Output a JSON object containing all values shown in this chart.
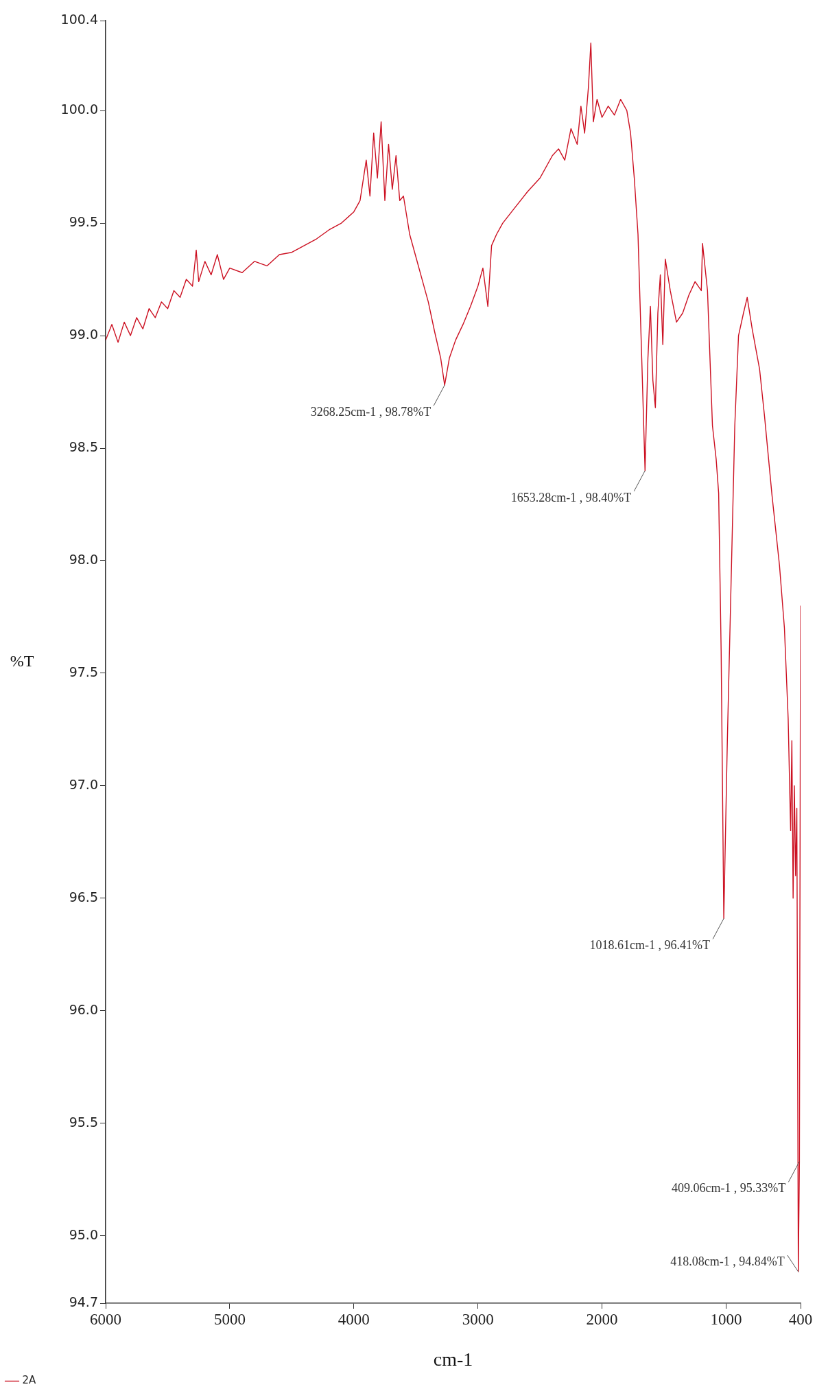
{
  "chart_data": {
    "type": "line",
    "xlabel": "cm-1",
    "ylabel": "%T",
    "xlim": [
      6000,
      400
    ],
    "xticks": [
      400,
      1000,
      2000,
      3000,
      4000,
      5000,
      6000
    ],
    "ylim": [
      94.7,
      100.4
    ],
    "yticks": [
      94.7,
      {
        "value": 95,
        "label": "95.0"
      },
      95.5,
      {
        "value": 96,
        "label": "96.0"
      },
      96.5,
      {
        "value": 97,
        "label": "97.0"
      },
      97.5,
      {
        "value": 98,
        "label": "98.0"
      },
      98.5,
      {
        "value": 99,
        "label": "99.0"
      },
      99.5,
      {
        "value": 100,
        "label": "100.0"
      },
      100.4
    ],
    "grid": false,
    "legend": "bottom left",
    "marker": "none",
    "x": [
      6000,
      5950,
      5900,
      5850,
      5800,
      5750,
      5700,
      5650,
      5600,
      5550,
      5500,
      5450,
      5400,
      5350,
      5300,
      5270,
      5250,
      5200,
      5150,
      5100,
      5050,
      5000,
      4900,
      4800,
      4700,
      4600,
      4500,
      4400,
      4300,
      4200,
      4100,
      4000,
      3950,
      3900,
      3870,
      3840,
      3810,
      3780,
      3750,
      3720,
      3690,
      3660,
      3630,
      3600,
      3550,
      3500,
      3450,
      3400,
      3350,
      3300,
      3268.25,
      3230,
      3180,
      3120,
      3060,
      3000,
      2960,
      2920,
      2890,
      2850,
      2800,
      2700,
      2600,
      2500,
      2400,
      2350,
      2300,
      2250,
      2200,
      2170,
      2140,
      2110,
      2090,
      2070,
      2040,
      2000,
      1950,
      1900,
      1850,
      1800,
      1770,
      1740,
      1710,
      1680,
      1653.28,
      1630,
      1610,
      1590,
      1570,
      1550,
      1530,
      1510,
      1490,
      1450,
      1400,
      1350,
      1300,
      1250,
      1200,
      1190,
      1150,
      1110,
      1080,
      1060,
      1040,
      1018.61,
      990,
      960,
      930,
      900,
      860,
      830,
      790,
      730,
      690,
      630,
      570,
      530,
      500,
      480,
      470,
      460,
      450,
      440,
      430,
      418.08,
      409.06,
      400
    ],
    "series": [
      {
        "name": "2A",
        "color": "#cc1122",
        "values": [
          98.98,
          99.05,
          98.97,
          99.06,
          99.0,
          99.08,
          99.03,
          99.12,
          99.08,
          99.15,
          99.12,
          99.2,
          99.17,
          99.25,
          99.22,
          99.38,
          99.24,
          99.33,
          99.27,
          99.36,
          99.25,
          99.3,
          99.28,
          99.33,
          99.31,
          99.36,
          99.37,
          99.4,
          99.43,
          99.47,
          99.5,
          99.55,
          99.6,
          99.78,
          99.62,
          99.9,
          99.7,
          99.95,
          99.6,
          99.85,
          99.65,
          99.8,
          99.6,
          99.62,
          99.45,
          99.35,
          99.25,
          99.15,
          99.02,
          98.9,
          98.78,
          98.9,
          98.98,
          99.05,
          99.13,
          99.22,
          99.3,
          99.13,
          99.4,
          99.45,
          99.5,
          99.57,
          99.64,
          99.7,
          99.8,
          99.83,
          99.78,
          99.92,
          99.85,
          100.02,
          99.9,
          100.1,
          100.3,
          99.95,
          100.05,
          99.97,
          100.02,
          99.98,
          100.05,
          100.0,
          99.9,
          99.7,
          99.45,
          98.9,
          98.4,
          98.9,
          99.13,
          98.8,
          98.68,
          99.1,
          99.27,
          98.96,
          99.34,
          99.2,
          99.06,
          99.1,
          99.18,
          99.24,
          99.2,
          99.41,
          99.2,
          98.6,
          98.45,
          98.3,
          97.6,
          96.41,
          97.2,
          97.9,
          98.6,
          99.0,
          99.1,
          99.17,
          99.03,
          98.85,
          98.64,
          98.29,
          97.98,
          97.7,
          97.3,
          96.8,
          97.2,
          96.5,
          97.0,
          96.6,
          96.9,
          94.84,
          95.33,
          97.8
        ]
      }
    ],
    "annotations": [
      {
        "text": "3268.25cm-1 , 98.78%T",
        "x": 3268.25,
        "y": 98.78
      },
      {
        "text": "1653.28cm-1 , 98.40%T",
        "x": 1653.28,
        "y": 98.4
      },
      {
        "text": "1018.61cm-1 , 96.41%T",
        "x": 1018.61,
        "y": 96.41
      },
      {
        "text": "418.08cm-1 , 94.84%T",
        "x": 418.08,
        "y": 94.84
      },
      {
        "text": "409.06cm-1 , 95.33%T",
        "x": 409.06,
        "y": 95.33
      }
    ]
  }
}
